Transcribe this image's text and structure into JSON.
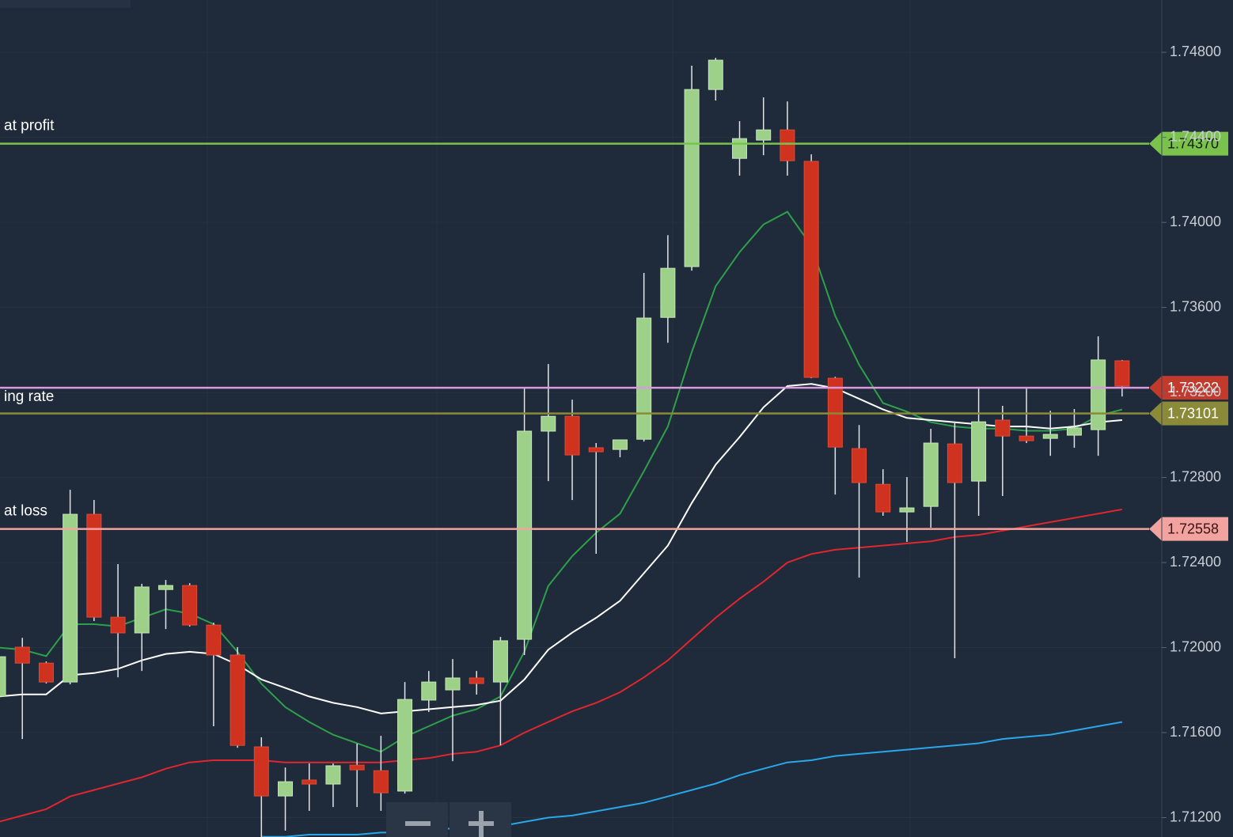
{
  "chart_data": {
    "type": "candlestick",
    "open": [
      1.71771,
      1.72002,
      1.71927,
      1.71838,
      1.72627,
      1.72143,
      1.72069,
      1.72273,
      1.72292,
      1.72106,
      1.71965,
      1.71533,
      1.71302,
      1.71377,
      1.71358,
      1.71447,
      1.71421,
      1.71325,
      1.71753,
      1.71801,
      1.71857,
      1.71838,
      1.72039,
      1.73018,
      1.73088,
      1.7294,
      1.72932,
      1.7298,
      1.73553,
      1.73792,
      1.74625,
      1.74301,
      1.74387,
      1.74435,
      1.74287,
      1.73267,
      1.72936,
      1.72768,
      1.72638,
      1.72664,
      1.72958,
      1.72783,
      1.7307,
      1.72995,
      1.72984,
      1.72999,
      1.73025,
      1.73349
    ],
    "high": [
      1.71976,
      1.72046,
      1.71935,
      1.72742,
      1.72694,
      1.72393,
      1.723,
      1.72318,
      1.72303,
      1.72117,
      1.72002,
      1.71578,
      1.71436,
      1.71455,
      1.71455,
      1.71548,
      1.71585,
      1.71838,
      1.7189,
      1.71946,
      1.7189,
      1.7205,
      1.73222,
      1.73334,
      1.73166,
      1.72962,
      1.72977,
      1.73762,
      1.7394,
      1.74737,
      1.74774,
      1.74476,
      1.74588,
      1.74569,
      1.7432,
      1.73274,
      1.73047,
      1.72839,
      1.72802,
      1.73029,
      1.73055,
      1.73222,
      1.73137,
      1.73222,
      1.73114,
      1.73122,
      1.73464,
      1.73353
    ],
    "low": [
      1.71753,
      1.7157,
      1.71831,
      1.71827,
      1.72125,
      1.7186,
      1.7189,
      1.72087,
      1.72099,
      1.7163,
      1.71529,
      1.71109,
      1.71139,
      1.71232,
      1.7125,
      1.7125,
      1.71232,
      1.71313,
      1.71697,
      1.71466,
      1.71779,
      1.7154,
      1.71965,
      1.72783,
      1.72694,
      1.72441,
      1.72895,
      1.72969,
      1.73434,
      1.73773,
      1.74573,
      1.7422,
      1.74316,
      1.7422,
      1.73267,
      1.7272,
      1.72329,
      1.7262,
      1.72497,
      1.72564,
      1.7195,
      1.7262,
      1.72713,
      1.72962,
      1.72902,
      1.7294,
      1.72902,
      1.73181
    ],
    "close": [
      1.71957,
      1.71927,
      1.71838,
      1.72627,
      1.72143,
      1.72069,
      1.72285,
      1.72292,
      1.72106,
      1.71965,
      1.7154,
      1.71302,
      1.71369,
      1.71358,
      1.71444,
      1.71425,
      1.71317,
      1.71756,
      1.71838,
      1.71857,
      1.71831,
      1.72032,
      1.73018,
      1.73088,
      1.72906,
      1.72921,
      1.72977,
      1.7355,
      1.73784,
      1.74625,
      1.74763,
      1.74394,
      1.74435,
      1.7429,
      1.73271,
      1.72943,
      1.72776,
      1.72638,
      1.72657,
      1.72962,
      1.72776,
      1.73062,
      1.72995,
      1.72973,
      1.73003,
      1.73033,
      1.73353,
      1.7323
    ],
    "up_color": "#9dd18a",
    "down_color": "#cf3320",
    "wick_color": "#e2e4e8",
    "ylim": [
      1.71109,
      1.75046
    ],
    "yticks": [
      {
        "value": 1.748,
        "label": "1.74800"
      },
      {
        "value": 1.744,
        "label": "1.74400"
      },
      {
        "value": 1.74,
        "label": "1.74000"
      },
      {
        "value": 1.736,
        "label": "1.73600"
      },
      {
        "value": 1.732,
        "label": "1.73200"
      },
      {
        "value": 1.728,
        "label": "1.72800"
      },
      {
        "value": 1.724,
        "label": "1.72400"
      },
      {
        "value": 1.72,
        "label": "1.72000"
      },
      {
        "value": 1.716,
        "label": "1.71600"
      },
      {
        "value": 1.712,
        "label": "1.71200"
      }
    ],
    "grid": true,
    "moving_averages": [
      {
        "color": "#2ea04a",
        "values": [
          1.72,
          1.7199,
          1.7196,
          1.7211,
          1.7211,
          1.721,
          1.7214,
          1.7218,
          1.7216,
          1.7211,
          1.7198,
          1.7183,
          1.7172,
          1.7165,
          1.7159,
          1.7155,
          1.7151,
          1.7158,
          1.7163,
          1.7168,
          1.7171,
          1.7177,
          1.7198,
          1.7229,
          1.7243,
          1.7254,
          1.7263,
          1.7283,
          1.7304,
          1.7339,
          1.737,
          1.7386,
          1.7399,
          1.7405,
          1.7389,
          1.7356,
          1.7333,
          1.7315,
          1.7311,
          1.7306,
          1.7304,
          1.7303,
          1.7303,
          1.7302,
          1.7302,
          1.7303,
          1.7309,
          1.7312
        ]
      },
      {
        "color": "#ffffff",
        "values": [
          1.7177,
          1.7178,
          1.7178,
          1.7187,
          1.7188,
          1.719,
          1.7194,
          1.7197,
          1.7198,
          1.7197,
          1.7192,
          1.7185,
          1.7181,
          1.7177,
          1.7174,
          1.7172,
          1.7169,
          1.717,
          1.7171,
          1.7172,
          1.7173,
          1.7175,
          1.7185,
          1.7199,
          1.7207,
          1.7214,
          1.7222,
          1.7235,
          1.7248,
          1.7268,
          1.7286,
          1.7299,
          1.7313,
          1.7323,
          1.7324,
          1.7322,
          1.7317,
          1.7312,
          1.7308,
          1.7307,
          1.7306,
          1.7305,
          1.7304,
          1.7304,
          1.7303,
          1.7304,
          1.7306,
          1.7307
        ]
      },
      {
        "color": "#e0262e",
        "values": [
          1.7118,
          1.7121,
          1.7124,
          1.713,
          1.7133,
          1.7136,
          1.7139,
          1.7143,
          1.7146,
          1.7147,
          1.7147,
          1.7147,
          1.7146,
          1.7146,
          1.7146,
          1.7146,
          1.7146,
          1.7147,
          1.7148,
          1.715,
          1.7151,
          1.7154,
          1.716,
          1.7165,
          1.717,
          1.7174,
          1.7179,
          1.7186,
          1.7194,
          1.7204,
          1.7214,
          1.7223,
          1.7231,
          1.724,
          1.7244,
          1.7246,
          1.7247,
          1.7248,
          1.7249,
          1.725,
          1.7252,
          1.7253,
          1.7255,
          1.7257,
          1.7259,
          1.7261,
          1.7263,
          1.7265
        ]
      },
      {
        "color": "#2aa7e8",
        "values": [
          null,
          null,
          null,
          null,
          null,
          null,
          null,
          null,
          null,
          null,
          null,
          1.7111,
          1.7111,
          1.7112,
          1.7112,
          1.7112,
          1.7113,
          1.7113,
          1.7114,
          1.7115,
          1.7115,
          1.7116,
          1.7118,
          1.712,
          1.7121,
          1.7123,
          1.7125,
          1.7127,
          1.713,
          1.7133,
          1.7136,
          1.714,
          1.7143,
          1.7146,
          1.7147,
          1.7149,
          1.715,
          1.7151,
          1.7152,
          1.7153,
          1.7154,
          1.7155,
          1.7157,
          1.7158,
          1.7159,
          1.7161,
          1.7163,
          1.7165
        ]
      }
    ],
    "levels": [
      {
        "name": "at profit",
        "value": 1.7437,
        "label": "1.74370",
        "color": "#7ac24c",
        "text_color": "#12210e"
      },
      {
        "name": "ing rate",
        "value": 1.73222,
        "label": "1.73222",
        "color": "#d99ae0",
        "badge_color": "#c23a2c",
        "text_color": "#ffffff"
      },
      {
        "value": 1.73101,
        "label": "1.73101",
        "color": "#8b8a38",
        "text_color": "#ffffff"
      },
      {
        "name": "at loss",
        "value": 1.72558,
        "label": "1.72558",
        "color": "#f2a3a0",
        "text_color": "#3a1414"
      }
    ]
  }
}
